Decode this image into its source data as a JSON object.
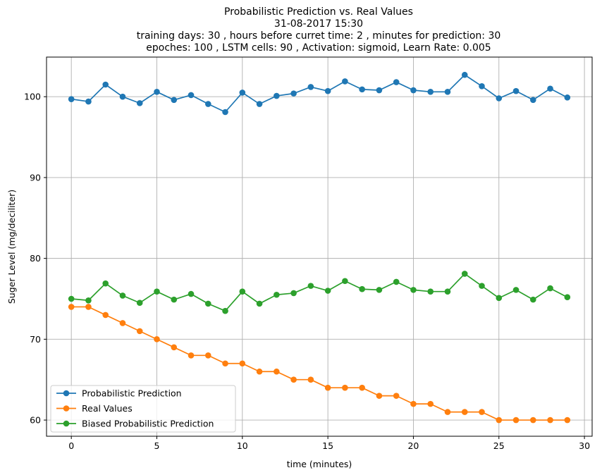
{
  "chart_data": {
    "type": "line",
    "title_lines": [
      "Probabilistic Prediction vs. Real Values",
      "31-08-2017 15:30",
      "training days: 30 , hours before curret time: 2 , minutes for prediction: 30",
      "epoches: 100 , LSTM cells: 90 , Activation: sigmoid, Learn Rate: 0.005"
    ],
    "xlabel": "time (minutes)",
    "ylabel": "Suger Level (mg/deciliter)",
    "xlim": [
      -1.45,
      30.45
    ],
    "ylim": [
      58.0,
      104.9
    ],
    "x_ticks": [
      0,
      5,
      10,
      15,
      20,
      25,
      30
    ],
    "y_ticks": [
      60,
      70,
      80,
      90,
      100
    ],
    "grid": true,
    "legend_position": "lower-left",
    "x": [
      0,
      1,
      2,
      3,
      4,
      5,
      6,
      7,
      8,
      9,
      10,
      11,
      12,
      13,
      14,
      15,
      16,
      17,
      18,
      19,
      20,
      21,
      22,
      23,
      24,
      25,
      26,
      27,
      28,
      29
    ],
    "series": [
      {
        "name": "Probabilistic Prediction",
        "color": "#1f77b4",
        "values": [
          99.7,
          99.4,
          101.5,
          100.0,
          99.2,
          100.6,
          99.6,
          100.2,
          99.1,
          98.1,
          100.5,
          99.1,
          100.1,
          100.4,
          101.2,
          100.7,
          101.9,
          100.9,
          100.8,
          101.8,
          100.8,
          100.6,
          100.6,
          102.7,
          101.3,
          99.8,
          100.7,
          99.6,
          101.0,
          99.9
        ]
      },
      {
        "name": "Real Values",
        "color": "#ff7f0e",
        "values": [
          74,
          74,
          73,
          72,
          71,
          70,
          69,
          68,
          68,
          67,
          67,
          66,
          66,
          65,
          65,
          64,
          64,
          64,
          63,
          63,
          62,
          62,
          61,
          61,
          61,
          60,
          60,
          60,
          60,
          60
        ]
      },
      {
        "name": "Biased Probabilistic Prediction",
        "color": "#2ca02c",
        "values": [
          75.0,
          74.8,
          76.9,
          75.4,
          74.5,
          75.9,
          74.9,
          75.6,
          74.4,
          73.5,
          75.9,
          74.4,
          75.5,
          75.7,
          76.6,
          76.0,
          77.2,
          76.2,
          76.1,
          77.1,
          76.1,
          75.9,
          75.9,
          78.1,
          76.6,
          75.1,
          76.1,
          74.9,
          76.3,
          75.2
        ]
      }
    ]
  }
}
